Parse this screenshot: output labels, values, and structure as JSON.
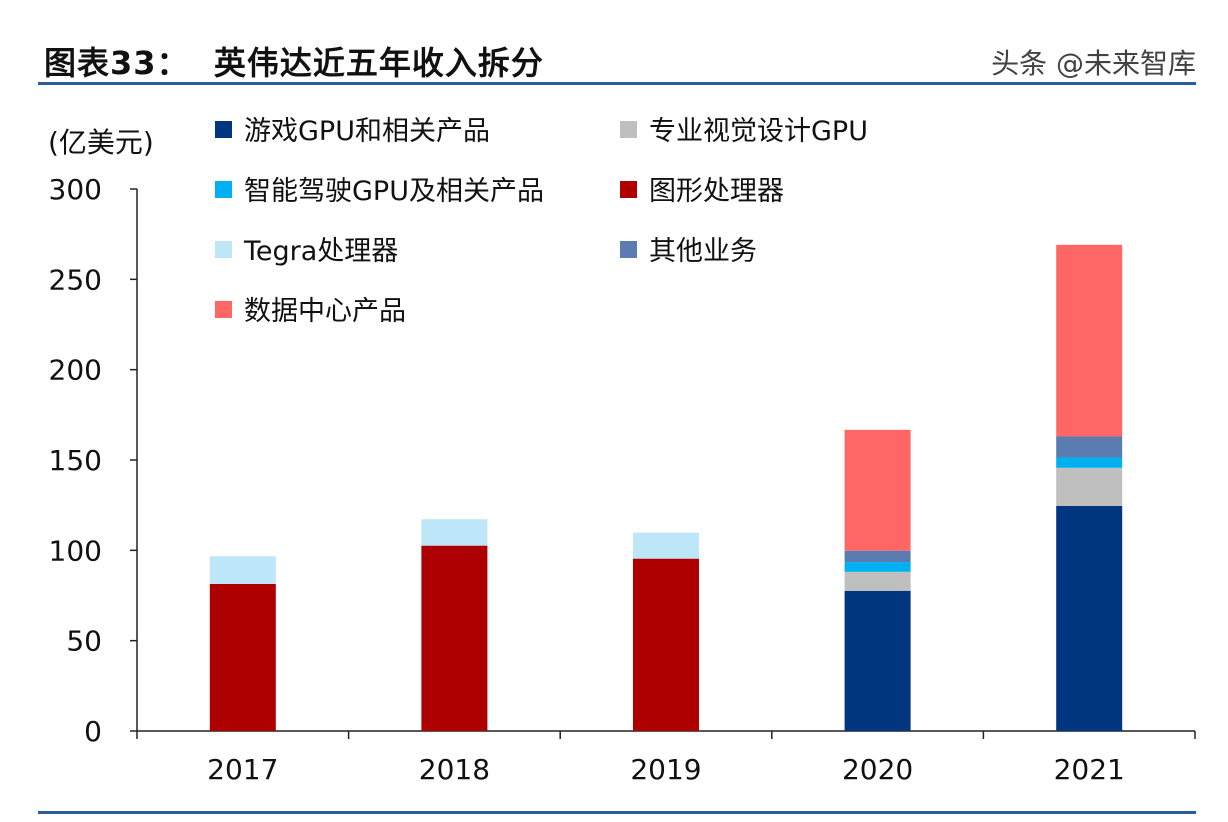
{
  "title": "图表33：  英伟达近五年收入拆分",
  "watermark": "头条 @未来智库",
  "chart_data": {
    "type": "bar",
    "stacked": true,
    "title": "图表33：  英伟达近五年收入拆分",
    "ylabel": "(亿美元)",
    "xlabel": "",
    "ylim": [
      0,
      300
    ],
    "yticks": [
      0,
      50,
      100,
      150,
      200,
      250,
      300
    ],
    "grid": false,
    "legend_position": "top-left",
    "categories": [
      "2017",
      "2018",
      "2019",
      "2020",
      "2021"
    ],
    "series": [
      {
        "name": "游戏GPU和相关产品",
        "color": "#003580",
        "values": [
          0,
          0,
          0,
          77.6,
          124.6
        ]
      },
      {
        "name": "专业视觉设计GPU",
        "color": "#BFBFBF",
        "values": [
          0,
          0,
          0,
          10.5,
          21.1
        ]
      },
      {
        "name": "智能驾驶GPU及相关产品",
        "color": "#00B0F0",
        "values": [
          0,
          0,
          0,
          5.4,
          5.7
        ]
      },
      {
        "name": "图形处理器",
        "color": "#AE0000",
        "values": [
          81.4,
          102.6,
          95.4,
          0,
          0
        ]
      },
      {
        "name": "Tegra处理器",
        "color": "#BDE7F8",
        "values": [
          15.3,
          14.6,
          14.4,
          0,
          0
        ]
      },
      {
        "name": "其他业务",
        "color": "#5A7CB0",
        "values": [
          0,
          0,
          0,
          6.3,
          11.6
        ]
      },
      {
        "name": "数据中心产品",
        "color": "#FF6666",
        "values": [
          0,
          0,
          0,
          66.9,
          106.1
        ]
      }
    ]
  }
}
